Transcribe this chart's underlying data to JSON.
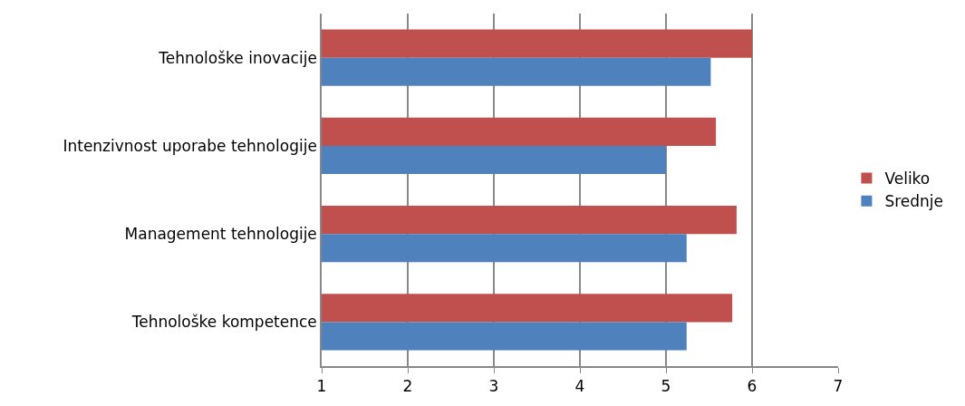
{
  "chart_data": {
    "type": "bar",
    "orientation": "horizontal",
    "categories": [
      "Tehnološke inovacije",
      "Intenzivnost uporabe tehnologije",
      "Management tehnologije",
      "Tehnološke kompetence"
    ],
    "series": [
      {
        "name": "Veliko",
        "color": "#c0504d",
        "values": [
          6.0,
          5.58,
          5.82,
          5.77
        ]
      },
      {
        "name": "Srednje",
        "color": "#4f81bd",
        "values": [
          5.52,
          5.0,
          5.24,
          5.24
        ]
      }
    ],
    "xlim": [
      1,
      7
    ],
    "xticks": [
      1,
      2,
      3,
      4,
      5,
      6,
      7
    ],
    "grid": "x",
    "legend": "right"
  }
}
